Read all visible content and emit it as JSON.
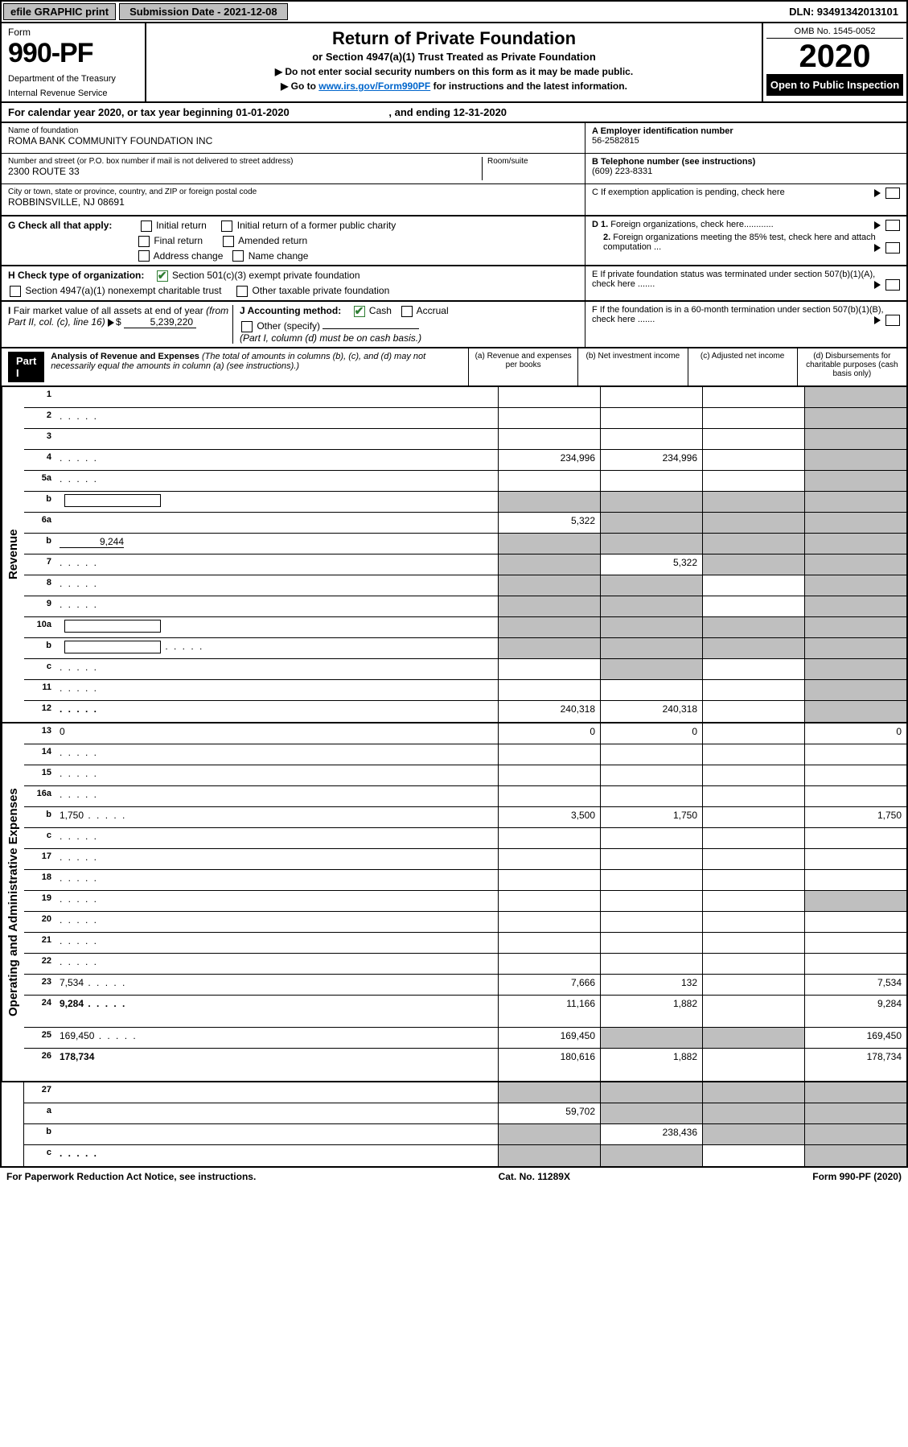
{
  "colors": {
    "header_grey": "#bfbfbf",
    "black": "#000000",
    "white": "#ffffff",
    "link": "#0066cc",
    "check_green": "#2e7d32"
  },
  "topbar": {
    "efile": "efile GRAPHIC print",
    "submission": "Submission Date - 2021-12-08",
    "dln": "DLN: 93491342013101"
  },
  "header": {
    "form_label": "Form",
    "form_number": "990-PF",
    "dept": "Department of the Treasury",
    "irs": "Internal Revenue Service",
    "title": "Return of Private Foundation",
    "subtitle": "or Section 4947(a)(1) Trust Treated as Private Foundation",
    "note1": "▶ Do not enter social security numbers on this form as it may be made public.",
    "note2_pre": "▶ Go to ",
    "note2_link": "www.irs.gov/Form990PF",
    "note2_post": " for instructions and the latest information.",
    "omb": "OMB No. 1545-0052",
    "year": "2020",
    "open": "Open to Public Inspection"
  },
  "calendar": {
    "text_pre": "For calendar year 2020, or tax year beginning ",
    "begin": "01-01-2020",
    "text_mid": " , and ending ",
    "end": "12-31-2020"
  },
  "foundation": {
    "name_label": "Name of foundation",
    "name": "ROMA BANK COMMUNITY FOUNDATION INC",
    "addr_label": "Number and street (or P.O. box number if mail is not delivered to street address)",
    "addr": "2300 ROUTE 33",
    "room_label": "Room/suite",
    "room": "",
    "city_label": "City or town, state or province, country, and ZIP or foreign postal code",
    "city": "ROBBINSVILLE, NJ  08691"
  },
  "right_info": {
    "ein_label": "A Employer identification number",
    "ein": "56-2582815",
    "phone_label": "B Telephone number (see instructions)",
    "phone": "(609) 223-8331",
    "c_label": "C If exemption application is pending, check here",
    "d1_label": "D 1. Foreign organizations, check here............",
    "d2_label": "2. Foreign organizations meeting the 85% test, check here and attach computation ...",
    "e_label": "E  If private foundation status was terminated under section 507(b)(1)(A), check here .......",
    "f_label": "F  If the foundation is in a 60-month termination under section 507(b)(1)(B), check here ......."
  },
  "section_g": {
    "label": "G Check all that apply:",
    "opts": [
      "Initial return",
      "Initial return of a former public charity",
      "Final return",
      "Amended return",
      "Address change",
      "Name change"
    ]
  },
  "section_h": {
    "label": "H Check type of organization:",
    "opt1": "Section 501(c)(3) exempt private foundation",
    "opt2": "Section 4947(a)(1) nonexempt charitable trust",
    "opt3": "Other taxable private foundation"
  },
  "section_i": {
    "label": "I Fair market value of all assets at end of year (from Part II, col. (c), line 16)",
    "value": "5,239,220"
  },
  "section_j": {
    "label": "J Accounting method:",
    "cash": "Cash",
    "accrual": "Accrual",
    "other": "Other (specify)",
    "note": "(Part I, column (d) must be on cash basis.)"
  },
  "part1": {
    "badge": "Part I",
    "title": "Analysis of Revenue and Expenses",
    "desc": "(The total of amounts in columns (b), (c), and (d) may not necessarily equal the amounts in column (a) (see instructions).)",
    "col_a": "(a)  Revenue and expenses per books",
    "col_b": "(b)  Net investment income",
    "col_c": "(c)  Adjusted net income",
    "col_d": "(d)  Disbursements for charitable purposes (cash basis only)"
  },
  "side_labels": {
    "revenue": "Revenue",
    "expenses": "Operating and Administrative Expenses"
  },
  "rows": [
    {
      "n": "1",
      "d": "",
      "a": "",
      "b": "",
      "c": "",
      "dgrey": true
    },
    {
      "n": "2",
      "d": "",
      "a": "",
      "b": "",
      "c": "",
      "dgrey": true,
      "nocellsBCD": true,
      "dots": true
    },
    {
      "n": "3",
      "d": "",
      "a": "",
      "b": "",
      "c": "",
      "dgrey": true
    },
    {
      "n": "4",
      "d": "",
      "a": "234,996",
      "b": "234,996",
      "c": "",
      "dgrey": true,
      "dots": true
    },
    {
      "n": "5a",
      "d": "",
      "a": "",
      "b": "",
      "c": "",
      "dgrey": true,
      "dots": true
    },
    {
      "n": "b",
      "d": "",
      "a": "",
      "b": "",
      "c": "",
      "allgrey": true,
      "inputbox": true
    },
    {
      "n": "6a",
      "d": "",
      "a": "5,322",
      "b": "",
      "c": "",
      "bcgrey": true,
      "dgrey": true
    },
    {
      "n": "b",
      "d": "",
      "a": "",
      "b": "",
      "c": "",
      "allgrey": true,
      "inline_val": "9,244"
    },
    {
      "n": "7",
      "d": "",
      "a": "",
      "b": "5,322",
      "c": "",
      "agrey": true,
      "cgrey": true,
      "dgrey": true,
      "dots": true
    },
    {
      "n": "8",
      "d": "",
      "a": "",
      "b": "",
      "c": "",
      "agrey": true,
      "bgrey": true,
      "dgrey": true,
      "dots": true
    },
    {
      "n": "9",
      "d": "",
      "a": "",
      "b": "",
      "c": "",
      "agrey": true,
      "bgrey": true,
      "dgrey": true,
      "dots": true
    },
    {
      "n": "10a",
      "d": "",
      "a": "",
      "b": "",
      "c": "",
      "allgrey": true,
      "inputbox": true
    },
    {
      "n": "b",
      "d": "",
      "a": "",
      "b": "",
      "c": "",
      "allgrey": true,
      "inputbox": true,
      "dots": true
    },
    {
      "n": "c",
      "d": "",
      "a": "",
      "b": "",
      "c": "",
      "bgrey": true,
      "dgrey": true,
      "dots": true
    },
    {
      "n": "11",
      "d": "",
      "a": "",
      "b": "",
      "c": "",
      "dgrey": true,
      "dots": true
    },
    {
      "n": "12",
      "d": "",
      "a": "240,318",
      "b": "240,318",
      "c": "",
      "dgrey": true,
      "bold": true,
      "dots": true
    }
  ],
  "exp_rows": [
    {
      "n": "13",
      "d": "0",
      "a": "0",
      "b": "0",
      "c": ""
    },
    {
      "n": "14",
      "d": "",
      "a": "",
      "b": "",
      "c": "",
      "dots": true
    },
    {
      "n": "15",
      "d": "",
      "a": "",
      "b": "",
      "c": "",
      "dots": true
    },
    {
      "n": "16a",
      "d": "",
      "a": "",
      "b": "",
      "c": "",
      "dots": true
    },
    {
      "n": "b",
      "d": "1,750",
      "a": "3,500",
      "b": "1,750",
      "c": "",
      "dots": true
    },
    {
      "n": "c",
      "d": "",
      "a": "",
      "b": "",
      "c": "",
      "dots": true
    },
    {
      "n": "17",
      "d": "",
      "a": "",
      "b": "",
      "c": "",
      "dots": true
    },
    {
      "n": "18",
      "d": "",
      "a": "",
      "b": "",
      "c": "",
      "dots": true
    },
    {
      "n": "19",
      "d": "",
      "a": "",
      "b": "",
      "c": "",
      "dgrey": true,
      "dots": true
    },
    {
      "n": "20",
      "d": "",
      "a": "",
      "b": "",
      "c": "",
      "dots": true
    },
    {
      "n": "21",
      "d": "",
      "a": "",
      "b": "",
      "c": "",
      "dots": true
    },
    {
      "n": "22",
      "d": "",
      "a": "",
      "b": "",
      "c": "",
      "dots": true
    },
    {
      "n": "23",
      "d": "7,534",
      "a": "7,666",
      "b": "132",
      "c": "",
      "dots": true
    },
    {
      "n": "24",
      "d": "9,284",
      "a": "11,166",
      "b": "1,882",
      "c": "",
      "bold": true,
      "dots": true,
      "tall": true
    },
    {
      "n": "25",
      "d": "169,450",
      "a": "169,450",
      "b": "",
      "c": "",
      "bgrey": true,
      "cgrey": true,
      "dots": true
    },
    {
      "n": "26",
      "d": "178,734",
      "a": "180,616",
      "b": "1,882",
      "c": "",
      "bold": true,
      "tall": true
    }
  ],
  "final_rows": [
    {
      "n": "27",
      "d": "",
      "a": "",
      "b": "",
      "c": "",
      "allgrey": true
    },
    {
      "n": "a",
      "d": "",
      "a": "59,702",
      "b": "",
      "c": "",
      "bold": true,
      "bgrey": true,
      "cgrey": true,
      "dgrey": true
    },
    {
      "n": "b",
      "d": "",
      "a": "",
      "b": "238,436",
      "c": "",
      "bold": true,
      "agrey": true,
      "cgrey": true,
      "dgrey": true
    },
    {
      "n": "c",
      "d": "",
      "a": "",
      "b": "",
      "c": "",
      "bold": true,
      "agrey": true,
      "bgrey": true,
      "dgrey": true,
      "dots": true
    }
  ],
  "footer": {
    "left": "For Paperwork Reduction Act Notice, see instructions.",
    "mid": "Cat. No. 11289X",
    "right": "Form 990-PF (2020)"
  }
}
